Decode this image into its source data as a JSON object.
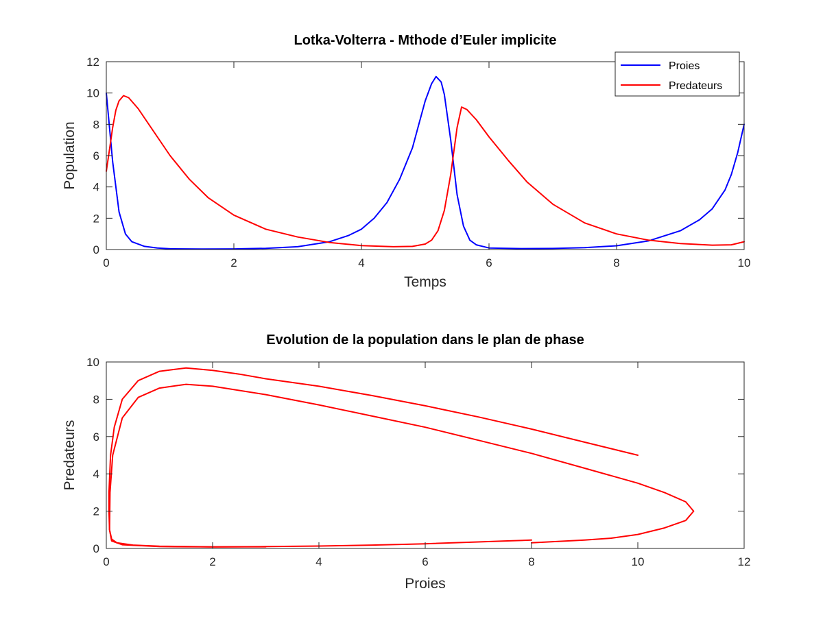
{
  "chart_data": [
    {
      "type": "line",
      "title": "Lotka-Volterra - Mthode d’Euler implicite",
      "xlabel": "Temps",
      "ylabel": "Population",
      "xlim": [
        0,
        10
      ],
      "ylim": [
        0,
        12
      ],
      "xticks": [
        0,
        2,
        4,
        6,
        8,
        10
      ],
      "yticks": [
        0,
        2,
        4,
        6,
        8,
        10,
        12
      ],
      "grid": false,
      "legend_position": "top-right",
      "series": [
        {
          "name": "Proies",
          "color": "#0000ff",
          "points": [
            [
              0,
              10
            ],
            [
              0.1,
              5.6
            ],
            [
              0.2,
              2.4
            ],
            [
              0.3,
              1.0
            ],
            [
              0.4,
              0.5
            ],
            [
              0.6,
              0.2
            ],
            [
              0.8,
              0.1
            ],
            [
              1.0,
              0.05
            ],
            [
              1.5,
              0.03
            ],
            [
              2.0,
              0.04
            ],
            [
              2.5,
              0.08
            ],
            [
              3.0,
              0.18
            ],
            [
              3.5,
              0.5
            ],
            [
              3.8,
              0.9
            ],
            [
              4.0,
              1.3
            ],
            [
              4.2,
              2.0
            ],
            [
              4.4,
              3.0
            ],
            [
              4.6,
              4.5
            ],
            [
              4.8,
              6.5
            ],
            [
              4.9,
              8.0
            ],
            [
              5.0,
              9.5
            ],
            [
              5.1,
              10.6
            ],
            [
              5.17,
              11.05
            ],
            [
              5.25,
              10.7
            ],
            [
              5.3,
              9.9
            ],
            [
              5.4,
              7.0
            ],
            [
              5.5,
              3.5
            ],
            [
              5.6,
              1.5
            ],
            [
              5.7,
              0.6
            ],
            [
              5.8,
              0.3
            ],
            [
              6.0,
              0.1
            ],
            [
              6.5,
              0.06
            ],
            [
              7.0,
              0.07
            ],
            [
              7.5,
              0.12
            ],
            [
              8.0,
              0.24
            ],
            [
              8.5,
              0.55
            ],
            [
              9.0,
              1.2
            ],
            [
              9.3,
              1.9
            ],
            [
              9.5,
              2.6
            ],
            [
              9.7,
              3.8
            ],
            [
              9.8,
              4.8
            ],
            [
              9.9,
              6.2
            ],
            [
              10.0,
              8.0
            ]
          ]
        },
        {
          "name": "Predateurs",
          "color": "#ff0000",
          "points": [
            [
              0,
              5.0
            ],
            [
              0.05,
              6.4
            ],
            [
              0.1,
              7.8
            ],
            [
              0.15,
              8.9
            ],
            [
              0.2,
              9.5
            ],
            [
              0.27,
              9.83
            ],
            [
              0.35,
              9.7
            ],
            [
              0.5,
              9.0
            ],
            [
              0.7,
              7.8
            ],
            [
              1.0,
              6.0
            ],
            [
              1.3,
              4.5
            ],
            [
              1.6,
              3.3
            ],
            [
              2.0,
              2.2
            ],
            [
              2.5,
              1.3
            ],
            [
              3.0,
              0.8
            ],
            [
              3.5,
              0.45
            ],
            [
              4.0,
              0.25
            ],
            [
              4.5,
              0.18
            ],
            [
              4.8,
              0.2
            ],
            [
              5.0,
              0.35
            ],
            [
              5.1,
              0.6
            ],
            [
              5.2,
              1.2
            ],
            [
              5.3,
              2.5
            ],
            [
              5.4,
              4.8
            ],
            [
              5.5,
              7.8
            ],
            [
              5.57,
              9.1
            ],
            [
              5.65,
              8.95
            ],
            [
              5.8,
              8.3
            ],
            [
              6.0,
              7.2
            ],
            [
              6.3,
              5.7
            ],
            [
              6.6,
              4.3
            ],
            [
              7.0,
              2.9
            ],
            [
              7.5,
              1.7
            ],
            [
              8.0,
              1.0
            ],
            [
              8.5,
              0.6
            ],
            [
              9.0,
              0.38
            ],
            [
              9.5,
              0.28
            ],
            [
              9.8,
              0.3
            ],
            [
              10.0,
              0.5
            ]
          ]
        }
      ]
    },
    {
      "type": "line",
      "title": "Evolution de la population dans le plan de phase",
      "xlabel": "Proies",
      "ylabel": "Predateurs",
      "xlim": [
        0,
        12
      ],
      "ylim": [
        0,
        10
      ],
      "xticks": [
        0,
        2,
        4,
        6,
        8,
        10,
        12
      ],
      "yticks": [
        0,
        2,
        4,
        6,
        8,
        10
      ],
      "grid": false,
      "series": [
        {
          "color": "#ff0000",
          "points": [
            [
              10,
              5
            ],
            [
              9,
              5.7
            ],
            [
              8,
              6.4
            ],
            [
              7,
              7.05
            ],
            [
              6,
              7.65
            ],
            [
              5,
              8.2
            ],
            [
              4,
              8.7
            ],
            [
              3,
              9.1
            ],
            [
              2.5,
              9.35
            ],
            [
              2,
              9.55
            ],
            [
              1.5,
              9.68
            ],
            [
              1,
              9.5
            ],
            [
              0.6,
              9.0
            ],
            [
              0.3,
              8.0
            ],
            [
              0.15,
              6.5
            ],
            [
              0.08,
              5.0
            ],
            [
              0.05,
              3.0
            ],
            [
              0.05,
              2.0
            ],
            [
              0.06,
              1.0
            ],
            [
              0.1,
              0.5
            ],
            [
              0.2,
              0.3
            ],
            [
              0.5,
              0.18
            ],
            [
              1,
              0.12
            ],
            [
              2,
              0.08
            ],
            [
              3,
              0.1
            ],
            [
              4,
              0.13
            ],
            [
              5,
              0.18
            ],
            [
              6,
              0.25
            ],
            [
              7,
              0.35
            ],
            [
              7.5,
              0.4
            ],
            [
              8,
              0.45
            ]
          ]
        },
        {
          "color": "#ff0000",
          "points": [
            [
              8.0,
              0.3
            ],
            [
              9,
              0.45
            ],
            [
              9.5,
              0.55
            ],
            [
              10,
              0.75
            ],
            [
              10.5,
              1.1
            ],
            [
              10.9,
              1.5
            ],
            [
              11.05,
              2.0
            ],
            [
              10.9,
              2.5
            ],
            [
              10.5,
              3.0
            ],
            [
              10,
              3.5
            ],
            [
              9,
              4.3
            ],
            [
              8,
              5.1
            ],
            [
              7,
              5.8
            ],
            [
              6,
              6.5
            ],
            [
              5,
              7.1
            ],
            [
              4,
              7.7
            ],
            [
              3,
              8.25
            ],
            [
              2,
              8.7
            ],
            [
              1.5,
              8.8
            ],
            [
              1,
              8.6
            ],
            [
              0.6,
              8.1
            ],
            [
              0.3,
              7.0
            ],
            [
              0.12,
              5.0
            ],
            [
              0.07,
              3.0
            ],
            [
              0.06,
              1.0
            ],
            [
              0.1,
              0.4
            ],
            [
              0.3,
              0.2
            ],
            [
              1,
              0.1
            ],
            [
              2,
              0.08
            ],
            [
              3,
              0.09
            ]
          ]
        }
      ]
    }
  ]
}
